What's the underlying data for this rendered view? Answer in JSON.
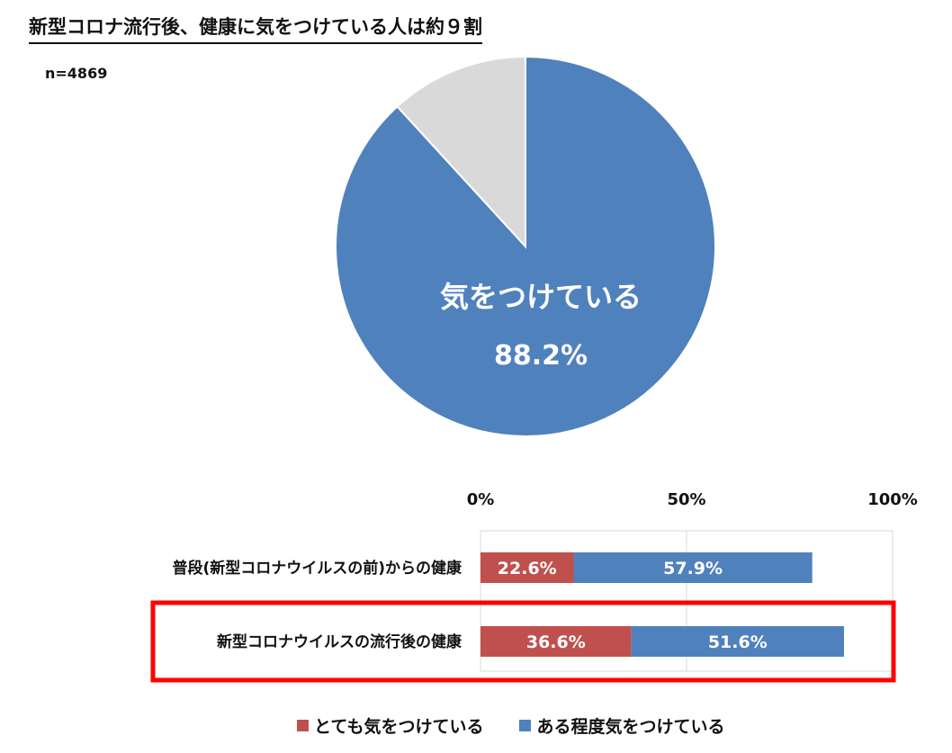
{
  "title": "新型コロナ流行後、健康に気をつけている人は約９割",
  "n_label": "n=4869",
  "colors": {
    "very": "#c0504d",
    "somewhat": "#4f81bd",
    "rest": "#d9d9d9",
    "highlight": "#ff0000"
  },
  "chart_data": [
    {
      "type": "pie",
      "title": "新型コロナ流行後、健康に気をつけている人は約９割",
      "slices": [
        {
          "label": "気をつけている",
          "value": 88.2,
          "display": "88.2%",
          "color": "#4f81bd"
        },
        {
          "label": "",
          "value": 11.8,
          "display": "",
          "color": "#d9d9d9"
        }
      ],
      "annotation_text": "気をつけている",
      "annotation_value": "88.2%"
    },
    {
      "type": "bar",
      "orientation": "horizontal",
      "stacked": true,
      "xlim": [
        0,
        100
      ],
      "x_ticks": [
        0,
        50,
        100
      ],
      "x_tick_labels": [
        "0%",
        "50%",
        "100%"
      ],
      "grid": true,
      "categories": [
        "普段(新型コロナウイルスの前)からの健康",
        "新型コロナウイルスの流行後の健康"
      ],
      "series": [
        {
          "name": "とても気をつけている",
          "values": [
            22.6,
            36.6
          ],
          "labels": [
            "22.6%",
            "36.6%"
          ],
          "color": "#c0504d"
        },
        {
          "name": "ある程度気をつけている",
          "values": [
            57.9,
            51.6
          ],
          "labels": [
            "57.9%",
            "51.6%"
          ],
          "color": "#4f81bd"
        }
      ],
      "highlighted_category": "新型コロナウイルスの流行後の健康",
      "legend_position": "bottom"
    }
  ]
}
